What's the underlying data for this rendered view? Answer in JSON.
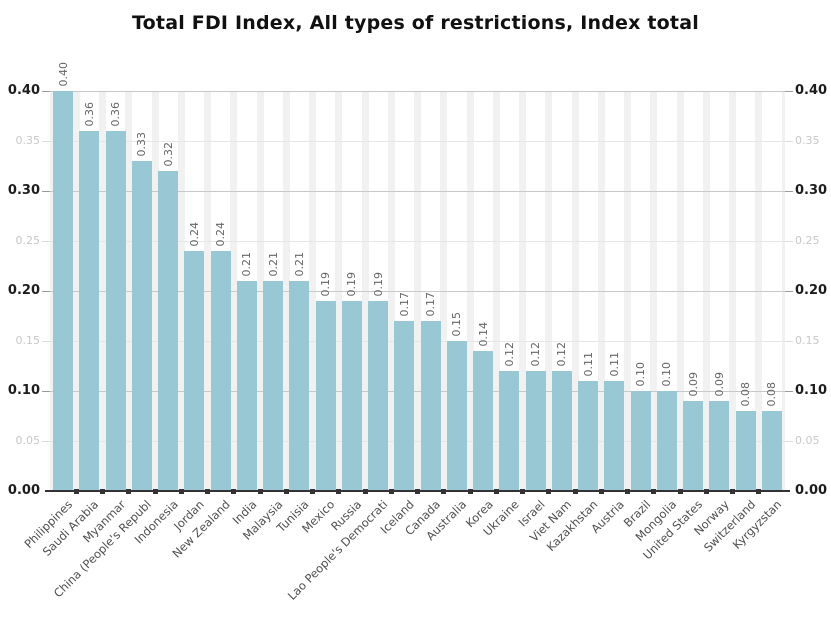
{
  "chart_data": {
    "type": "bar",
    "title": "Total FDI Index, All types of restrictions, Index total",
    "categories": [
      "Philippines",
      "Saudi Arabia",
      "Myanmar",
      "China (People's Republ",
      "Indonesia",
      "Jordan",
      "New Zealand",
      "India",
      "Malaysia",
      "Tunisia",
      "Mexico",
      "Russia",
      "Lao People's Democrati",
      "Iceland",
      "Canada",
      "Australia",
      "Korea",
      "Ukraine",
      "Israel",
      "Viet Nam",
      "Kazakhstan",
      "Austria",
      "Brazil",
      "Mongolia",
      "United States",
      "Norway",
      "Switzerland",
      "Kyrgyzstan"
    ],
    "values": [
      0.4,
      0.36,
      0.36,
      0.33,
      0.32,
      0.24,
      0.24,
      0.21,
      0.21,
      0.21,
      0.19,
      0.19,
      0.19,
      0.17,
      0.17,
      0.15,
      0.14,
      0.12,
      0.12,
      0.12,
      0.11,
      0.11,
      0.1,
      0.1,
      0.09,
      0.09,
      0.08,
      0.08
    ],
    "data_labels": [
      "0.40",
      "0.36",
      "0.36",
      "0.33",
      "0.32",
      "0.24",
      "0.24",
      "0.21",
      "0.21",
      "0.21",
      "0.19",
      "0.19",
      "0.19",
      "0.17",
      "0.17",
      "0.15",
      "0.14",
      "0.12",
      "0.12",
      "0.12",
      "0.11",
      "0.11",
      "0.10",
      "0.10",
      "0.09",
      "0.09",
      "0.08",
      "0.08"
    ],
    "xlabel": "",
    "ylabel": "",
    "ylim": [
      0,
      0.4
    ],
    "y_ticks": [
      {
        "label": "0.00",
        "value": 0.0,
        "major": true
      },
      {
        "label": "0.05",
        "value": 0.05,
        "major": false
      },
      {
        "label": "0.10",
        "value": 0.1,
        "major": true
      },
      {
        "label": "0.15",
        "value": 0.15,
        "major": false
      },
      {
        "label": "0.20",
        "value": 0.2,
        "major": true
      },
      {
        "label": "0.25",
        "value": 0.25,
        "major": false
      },
      {
        "label": "0.30",
        "value": 0.3,
        "major": true
      },
      {
        "label": "0.35",
        "value": 0.35,
        "major": false
      },
      {
        "label": "0.40",
        "value": 0.4,
        "major": true
      }
    ],
    "grid": "horizontal",
    "legend": "none",
    "axis_sides": [
      "left",
      "right"
    ],
    "colors": {
      "bar": "#97c8d4",
      "major_grid": "#c9c9c9",
      "minor_grid": "#e6e6e6",
      "column_stripe": "#f1f1f1",
      "axis_line": "#333333",
      "major_tick_label": "#1c1c1c",
      "minor_tick_label": "#c8c8c8",
      "major_tick_mark": "#9a9a9a",
      "minor_tick_mark": "#dcdcdc",
      "data_label": "#666666",
      "category_label": "#4f4f4f",
      "title": "#111111"
    }
  }
}
